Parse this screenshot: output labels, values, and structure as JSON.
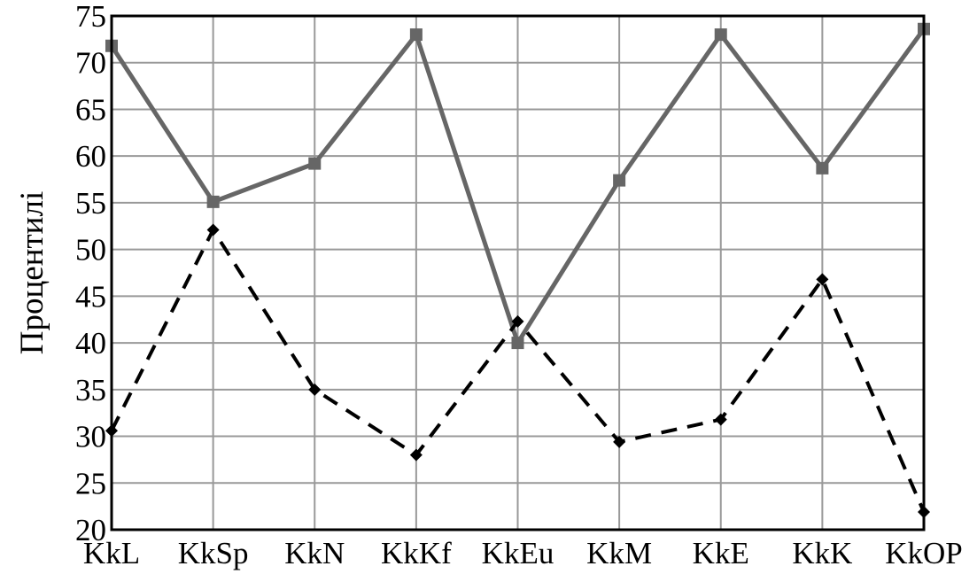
{
  "chart_data": {
    "type": "line",
    "ylabel": "Процентилі",
    "xlabel": "",
    "ylim": [
      20,
      75
    ],
    "yticks": [
      20,
      25,
      30,
      35,
      40,
      45,
      50,
      55,
      60,
      65,
      70,
      75
    ],
    "grid": true,
    "categories": [
      "KkL",
      "KkSp",
      "KkN",
      "KkKf",
      "KkEu",
      "KkM",
      "KkE",
      "KkK",
      "KkOP"
    ],
    "series": [
      {
        "style": "solid",
        "marker": "square",
        "color": "#666666",
        "values": [
          71.8,
          55.1,
          59.2,
          73.0,
          40.0,
          57.4,
          73.0,
          58.7,
          73.6
        ]
      },
      {
        "style": "dashed",
        "marker": "diamond",
        "color": "#000000",
        "values": [
          30.6,
          52.1,
          35.0,
          28.0,
          42.3,
          29.4,
          31.8,
          46.8,
          21.9
        ]
      }
    ]
  }
}
